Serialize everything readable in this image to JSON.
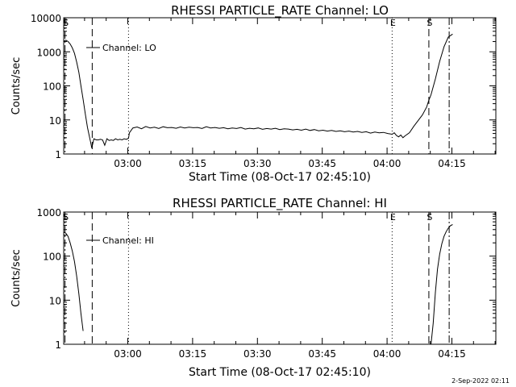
{
  "footer": {
    "date": "2-Sep-2022 02:11"
  },
  "chart_data": [
    {
      "type": "line",
      "title": "RHESSI PARTICLE_RATE Channel: LO",
      "xlabel": "Start Time (08-Oct-17 02:45:10)",
      "ylabel": "Counts/sec",
      "x_unit": "minutes after 02:45:10",
      "xlim": [
        0,
        100
      ],
      "ylim": [
        1,
        10000
      ],
      "y_scale": "log",
      "x_ticks": [
        {
          "value": 14.83,
          "label": "03:00"
        },
        {
          "value": 29.83,
          "label": "03:15"
        },
        {
          "value": 44.83,
          "label": "03:30"
        },
        {
          "value": 59.83,
          "label": "03:45"
        },
        {
          "value": 74.83,
          "label": "04:00"
        },
        {
          "value": 89.83,
          "label": "04:15"
        }
      ],
      "y_ticks": [
        {
          "value": 1,
          "label": "1"
        },
        {
          "value": 10,
          "label": "10"
        },
        {
          "value": 100,
          "label": "100"
        },
        {
          "value": 1000,
          "label": "1000"
        },
        {
          "value": 10000,
          "label": "10000"
        }
      ],
      "legend": {
        "label": "Channel: LO",
        "placement": "top-left"
      },
      "markers": [
        {
          "x": 0.3,
          "style": "dash-dot",
          "label": "S"
        },
        {
          "x": 6.6,
          "style": "dashed",
          "label": ""
        },
        {
          "x": 15.0,
          "style": "dotted",
          "label": ""
        },
        {
          "x": 76.0,
          "style": "dotted",
          "label": "E"
        },
        {
          "x": 84.5,
          "style": "dashed",
          "label": "S"
        },
        {
          "x": 89.2,
          "style": "dash-dot",
          "label": ""
        }
      ],
      "series": [
        {
          "x": [
            0,
            0.5,
            1,
            1.5,
            2,
            2.5,
            3,
            3.5,
            4,
            4.5,
            5,
            5.5,
            6,
            6.3,
            6.5,
            7,
            7.5,
            8,
            8.5,
            9,
            9.5,
            10,
            10.5,
            11,
            11.5,
            12,
            12.5,
            13,
            13.5,
            14,
            14.5,
            15,
            15.2,
            16,
            17,
            18,
            19,
            20,
            21,
            22,
            23,
            24,
            25,
            26,
            27,
            28,
            29,
            30,
            31,
            32,
            33,
            34,
            35,
            36,
            37,
            38,
            39,
            40,
            41,
            42,
            43,
            44,
            45,
            46,
            47,
            48,
            49,
            50,
            51,
            52,
            53,
            54,
            55,
            56,
            57,
            58,
            59,
            60,
            61,
            62,
            63,
            64,
            65,
            66,
            67,
            68,
            69,
            70,
            71,
            72,
            73,
            74,
            75,
            76,
            76.5,
            77,
            77.5,
            78,
            78.5,
            79,
            80,
            81,
            82,
            83,
            84,
            84.5,
            85,
            86,
            87,
            88,
            89,
            90
          ],
          "y": [
            2000,
            2200,
            2000,
            1700,
            1300,
            900,
            500,
            250,
            100,
            40,
            15,
            6,
            3,
            2,
            1.5,
            2.8,
            2.6,
            2.6,
            2.7,
            2.6,
            1.8,
            2.8,
            2.5,
            2.6,
            2.5,
            2.8,
            2.6,
            2.7,
            2.6,
            2.8,
            2.7,
            2.9,
            4.2,
            5.8,
            6.2,
            5.5,
            6.4,
            5.8,
            6.1,
            5.6,
            6.3,
            5.9,
            6.0,
            5.7,
            6.2,
            5.8,
            6.1,
            5.9,
            6.0,
            5.6,
            6.3,
            5.8,
            6.0,
            5.7,
            5.9,
            5.5,
            5.8,
            5.6,
            6.0,
            5.4,
            5.7,
            5.5,
            5.8,
            5.3,
            5.6,
            5.4,
            5.7,
            5.2,
            5.5,
            5.4,
            5.1,
            5.3,
            5.0,
            5.4,
            4.9,
            5.2,
            4.8,
            5.0,
            4.7,
            4.9,
            4.6,
            4.8,
            4.5,
            4.7,
            4.4,
            4.6,
            4.3,
            4.5,
            4.1,
            4.4,
            4.2,
            4.3,
            4.0,
            3.8,
            4.2,
            3.5,
            3.2,
            3.6,
            3.0,
            3.4,
            4.2,
            6.5,
            9.5,
            14,
            24,
            38,
            55,
            160,
            520,
            1400,
            2700,
            3300
          ]
        }
      ]
    },
    {
      "type": "line",
      "title": "RHESSI PARTICLE_RATE Channel: HI",
      "xlabel": "Start Time (08-Oct-17 02:45:10)",
      "ylabel": "Counts/sec",
      "x_unit": "minutes after 02:45:10",
      "xlim": [
        0,
        100
      ],
      "ylim": [
        1,
        1000
      ],
      "y_scale": "log",
      "x_ticks": [
        {
          "value": 14.83,
          "label": "03:00"
        },
        {
          "value": 29.83,
          "label": "03:15"
        },
        {
          "value": 44.83,
          "label": "03:30"
        },
        {
          "value": 59.83,
          "label": "03:45"
        },
        {
          "value": 74.83,
          "label": "04:00"
        },
        {
          "value": 89.83,
          "label": "04:15"
        }
      ],
      "y_ticks": [
        {
          "value": 1,
          "label": "1"
        },
        {
          "value": 10,
          "label": "10"
        },
        {
          "value": 100,
          "label": "100"
        },
        {
          "value": 1000,
          "label": "1000"
        }
      ],
      "legend": {
        "label": "Channel: HI",
        "placement": "top-left"
      },
      "markers": [
        {
          "x": 0.3,
          "style": "dash-dot",
          "label": "S"
        },
        {
          "x": 6.6,
          "style": "dashed",
          "label": ""
        },
        {
          "x": 15.0,
          "style": "dotted",
          "label": ""
        },
        {
          "x": 76.0,
          "style": "dotted",
          "label": "E"
        },
        {
          "x": 84.5,
          "style": "dashed",
          "label": "S"
        },
        {
          "x": 89.2,
          "style": "dash-dot",
          "label": ""
        }
      ],
      "series": [
        {
          "x": [
            0,
            0.5,
            1,
            1.5,
            2,
            2.5,
            3,
            3.5,
            4,
            4.5
          ],
          "y": [
            350,
            330,
            280,
            200,
            130,
            75,
            35,
            14,
            5,
            2
          ]
        },
        {
          "x": [
            85,
            85.5,
            86,
            86.5,
            87,
            87.5,
            88,
            88.5,
            89,
            89.5,
            90
          ],
          "y": [
            1.0,
            3,
            15,
            50,
            110,
            190,
            280,
            360,
            430,
            490,
            520
          ]
        }
      ]
    }
  ]
}
